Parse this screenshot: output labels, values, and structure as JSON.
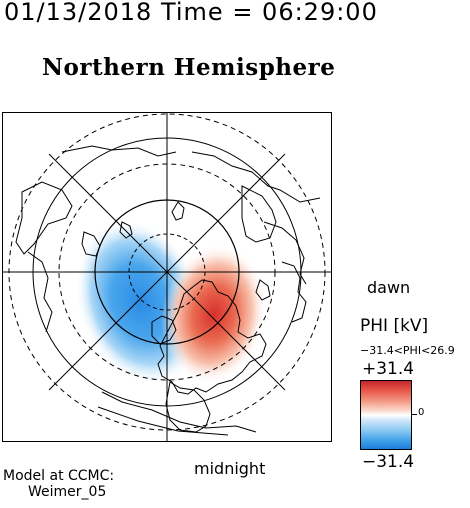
{
  "header": {
    "datetime": "01/13/2018 Time = 06:29:00"
  },
  "map": {
    "title": "Northern Hemisphere",
    "dawn_label": "dawn",
    "midnight_label": "midnight"
  },
  "colorbar": {
    "title": "PHI [kV]",
    "range_text": "−31.4<PHI<26.9",
    "max_label": "+31.4",
    "min_label": "−31.4",
    "zero_label": "0",
    "colors": {
      "positive": "#d7302c",
      "negative": "#2b8fe6",
      "neutral": "#ffffff"
    }
  },
  "footer": {
    "model_line": "Model at CCMC:",
    "model_name": "Weimer_05"
  }
}
